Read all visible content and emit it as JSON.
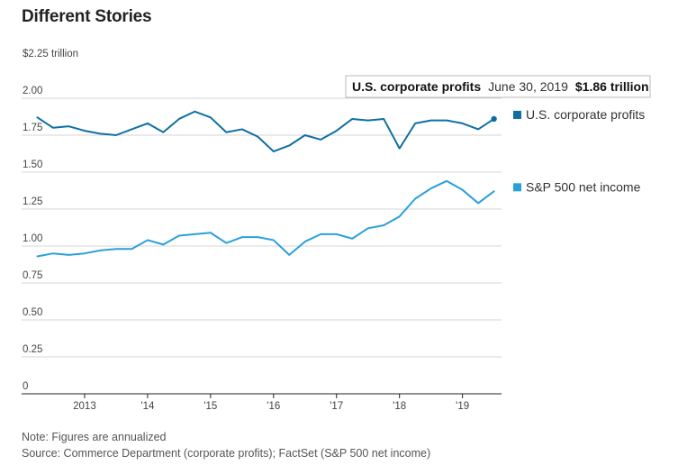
{
  "header": {
    "title": "Different Stories"
  },
  "chart_data": {
    "type": "line",
    "ylim": [
      0,
      2.25
    ],
    "y_ticks": [
      {
        "value": 2.25,
        "label": "$2.25 trillion"
      },
      {
        "value": 2.0,
        "label": "2.00"
      },
      {
        "value": 1.75,
        "label": "1.75"
      },
      {
        "value": 1.5,
        "label": "1.50"
      },
      {
        "value": 1.25,
        "label": "1.25"
      },
      {
        "value": 1.0,
        "label": "1.00"
      },
      {
        "value": 0.75,
        "label": "0.75"
      },
      {
        "value": 0.5,
        "label": "0.50"
      },
      {
        "value": 0.25,
        "label": "0.25"
      },
      {
        "value": 0,
        "label": "0"
      }
    ],
    "x_ticks": [
      {
        "value": 2013.0,
        "label": "2013"
      },
      {
        "value": 2014.0,
        "label": "'14"
      },
      {
        "value": 2015.0,
        "label": "'15"
      },
      {
        "value": 2016.0,
        "label": "'16"
      },
      {
        "value": 2017.0,
        "label": "'17"
      },
      {
        "value": 2018.0,
        "label": "'18"
      },
      {
        "value": 2019.0,
        "label": "'19"
      }
    ],
    "xlim": [
      2012.0,
      2019.62
    ],
    "x": [
      2012.25,
      2012.5,
      2012.75,
      2013.0,
      2013.25,
      2013.5,
      2013.75,
      2014.0,
      2014.25,
      2014.5,
      2014.75,
      2015.0,
      2015.25,
      2015.5,
      2015.75,
      2016.0,
      2016.25,
      2016.5,
      2016.75,
      2017.0,
      2017.25,
      2017.5,
      2017.75,
      2018.0,
      2018.25,
      2018.5,
      2018.75,
      2019.0,
      2019.25,
      2019.5
    ],
    "series": [
      {
        "name": "U.S. corporate profits",
        "color": "#0f6fa3",
        "values": [
          1.87,
          1.8,
          1.81,
          1.78,
          1.76,
          1.75,
          1.79,
          1.83,
          1.77,
          1.86,
          1.91,
          1.87,
          1.77,
          1.79,
          1.74,
          1.64,
          1.68,
          1.75,
          1.72,
          1.78,
          1.86,
          1.85,
          1.86,
          1.66,
          1.83,
          1.85,
          1.85,
          1.83,
          1.79,
          1.86
        ]
      },
      {
        "name": "S&P 500 net income",
        "color": "#2aa0d9",
        "values": [
          0.93,
          0.95,
          0.94,
          0.95,
          0.97,
          0.98,
          0.98,
          1.04,
          1.01,
          1.07,
          1.08,
          1.09,
          1.02,
          1.06,
          1.06,
          1.04,
          0.94,
          1.03,
          1.08,
          1.08,
          1.05,
          1.12,
          1.14,
          1.2,
          1.32,
          1.39,
          1.44,
          1.38,
          1.29,
          1.37
        ]
      }
    ],
    "tooltip": {
      "series": "U.S. corporate profits",
      "date": "June 30, 2019",
      "value": "$1.86 trillion"
    },
    "grid": true
  },
  "notes": {
    "note": "Note: Figures are annualized",
    "source": "Source: Commerce Department (corporate profits); FactSet (S&P 500 net income)"
  }
}
